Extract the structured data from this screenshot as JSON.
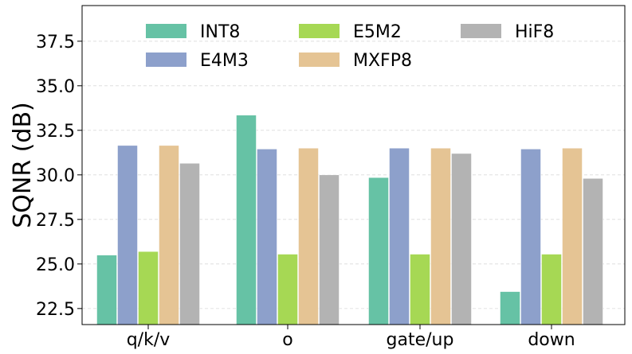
{
  "chart_data": {
    "type": "bar",
    "title": "",
    "xlabel": "",
    "ylabel": "SQNR (dB)",
    "ylim": [
      21.6,
      39.5
    ],
    "yticks": [
      22.5,
      25.0,
      27.5,
      30.0,
      32.5,
      35.0,
      37.5
    ],
    "ytick_labels": [
      "22.5",
      "25.0",
      "27.5",
      "30.0",
      "32.5",
      "35.0",
      "37.5"
    ],
    "grid": "horizontal dashed",
    "legend_position": "top",
    "categories": [
      "q/k/v",
      "o",
      "gate/up",
      "down"
    ],
    "series": [
      {
        "name": "INT8",
        "color": "#66c2a5",
        "values": [
          25.5,
          33.35,
          29.85,
          23.45
        ]
      },
      {
        "name": "E4M3",
        "color": "#8da0cb",
        "values": [
          31.65,
          31.45,
          31.5,
          31.45
        ]
      },
      {
        "name": "E5M2",
        "color": "#a6d854",
        "values": [
          25.7,
          25.55,
          25.55,
          25.55
        ]
      },
      {
        "name": "MXFP8",
        "color": "#e5c494",
        "values": [
          31.65,
          31.5,
          31.5,
          31.5
        ]
      },
      {
        "name": "HiF8",
        "color": "#b3b3b3",
        "values": [
          30.65,
          30.0,
          31.2,
          29.8
        ]
      }
    ]
  }
}
